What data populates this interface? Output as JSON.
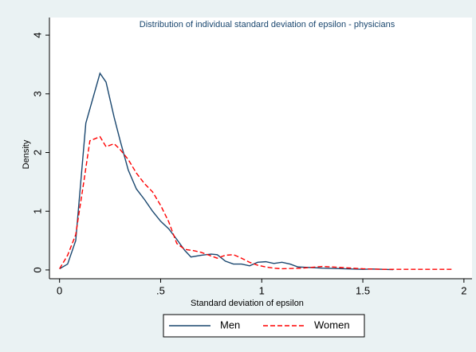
{
  "chart_data": {
    "type": "line",
    "title": "Distribution of individual standard deviation of epsilon - physicians",
    "x_label": "Standard deviation of epsilon",
    "y_label": "Density",
    "xlim": [
      -0.05,
      2.04
    ],
    "ylim": [
      -0.15,
      4.3
    ],
    "xticks": [
      0,
      {
        "value": 0.5,
        "label": ".5"
      },
      1,
      1.5,
      2
    ],
    "yticks": [
      0,
      1,
      2,
      3,
      4
    ],
    "legend": "bottom",
    "series": [
      {
        "name": "Men",
        "color": "#1a476f",
        "style": "solid",
        "x": [
          0,
          0.04,
          0.08,
          0.13,
          0.2,
          0.23,
          0.27,
          0.3,
          0.34,
          0.38,
          0.42,
          0.46,
          0.5,
          0.54,
          0.58,
          0.62,
          0.65,
          0.7,
          0.75,
          0.78,
          0.82,
          0.86,
          0.9,
          0.94,
          0.98,
          1.02,
          1.06,
          1.1,
          1.14,
          1.18,
          1.25,
          1.3,
          1.4,
          1.5,
          1.55,
          1.65
        ],
        "values": [
          0.02,
          0.1,
          0.5,
          2.5,
          3.35,
          3.2,
          2.6,
          2.2,
          1.7,
          1.38,
          1.2,
          1.0,
          0.83,
          0.7,
          0.52,
          0.33,
          0.22,
          0.25,
          0.27,
          0.26,
          0.15,
          0.1,
          0.1,
          0.07,
          0.13,
          0.14,
          0.11,
          0.13,
          0.1,
          0.05,
          0.04,
          0.03,
          0.02,
          0.01,
          0.015,
          0.005
        ]
      },
      {
        "name": "Women",
        "color": "#ff0000",
        "style": "dashed",
        "x": [
          0,
          0.04,
          0.08,
          0.12,
          0.15,
          0.2,
          0.23,
          0.27,
          0.3,
          0.34,
          0.38,
          0.42,
          0.46,
          0.5,
          0.54,
          0.58,
          0.62,
          0.66,
          0.7,
          0.74,
          0.78,
          0.82,
          0.86,
          0.9,
          0.94,
          0.98,
          1.02,
          1.06,
          1.1,
          1.2,
          1.3,
          1.4,
          1.5,
          1.6,
          1.7,
          1.8,
          1.95
        ],
        "values": [
          0.02,
          0.25,
          0.6,
          1.5,
          2.2,
          2.27,
          2.1,
          2.15,
          2.05,
          1.88,
          1.65,
          1.47,
          1.33,
          1.1,
          0.82,
          0.45,
          0.35,
          0.33,
          0.3,
          0.25,
          0.2,
          0.25,
          0.26,
          0.2,
          0.13,
          0.08,
          0.05,
          0.03,
          0.02,
          0.03,
          0.06,
          0.04,
          0.02,
          0.01,
          0.01,
          0.01,
          0.01
        ]
      }
    ]
  }
}
